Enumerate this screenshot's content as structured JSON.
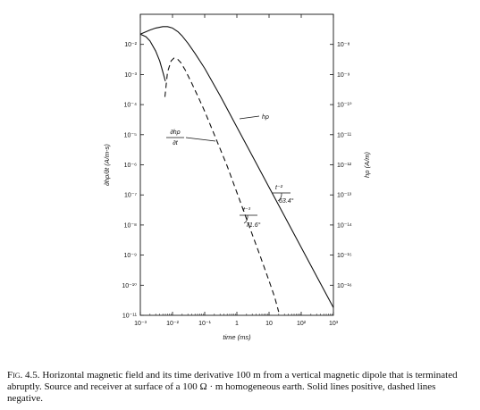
{
  "caption": {
    "label": "Fig. 4.5.",
    "text": "Horizontal magnetic field and its time derivative 100 m from a vertical magnetic dipole that is terminated abruptly. Source and receiver at surface of a 100 Ω · m homogeneous earth. Solid lines positive, dashed lines negative."
  },
  "chart_data": {
    "type": "line",
    "x_scale": "log",
    "y_scale": "log",
    "xlabel": "time (ms)",
    "ylabel_left": "∂hρ/∂t (A/m-s)",
    "ylabel_right": "hρ (A/m)",
    "xlim": [
      0.001,
      1000
    ],
    "ylim_left": [
      1e-11,
      0.1
    ],
    "ylim_right": [
      1e-17,
      1e-07
    ],
    "x_ticks": [
      "10⁻³",
      "10⁻²",
      "10⁻¹",
      "1",
      "10",
      "10²",
      "10³"
    ],
    "y_ticks_left": [
      "10⁻²",
      "10⁻³",
      "10⁻⁴",
      "10⁻⁵",
      "10⁻⁶",
      "10⁻⁷",
      "10⁻⁸",
      "10⁻⁹",
      "10⁻¹⁰",
      "10⁻¹¹"
    ],
    "y_ticks_right": [
      "10⁻⁸",
      "10⁻⁹",
      "10⁻¹⁰",
      "10⁻¹¹",
      "10⁻¹²",
      "10⁻¹³",
      "10⁻¹⁴",
      "10⁻¹⁵",
      "10⁻¹⁶"
    ],
    "series": [
      {
        "name": "hρ",
        "axis": "right",
        "style": "solid",
        "x": [
          0.001,
          0.002,
          0.003,
          0.005,
          0.007,
          0.01,
          0.015,
          0.02,
          0.03,
          0.05,
          0.1,
          0.3,
          1,
          3,
          10,
          30,
          100,
          300,
          1000
        ],
        "y": [
          2.2e-08,
          3e-08,
          3.5e-08,
          3.9e-08,
          3.9e-08,
          3.5e-08,
          2.6e-08,
          1.9e-08,
          1.1e-08,
          5e-09,
          1.6e-09,
          2e-10,
          1.8e-11,
          2e-12,
          1.8e-13,
          2e-14,
          1.8e-15,
          2e-16,
          1.8e-17
        ]
      },
      {
        "name": "∂hρ/∂t",
        "axis": "left",
        "style": "solid",
        "x": [
          0.001,
          0.0015,
          0.002,
          0.003,
          0.004,
          0.005,
          0.006
        ],
        "y": [
          0.022,
          0.018,
          0.013,
          0.006,
          0.0028,
          0.0012,
          0.0006
        ]
      },
      {
        "name": "∂hρ/∂t",
        "axis": "left",
        "style": "dashed",
        "x": [
          0.0058,
          0.007,
          0.009,
          0.011,
          0.014,
          0.018,
          0.025,
          0.04,
          0.07,
          0.1,
          0.2,
          0.5,
          1,
          2,
          5,
          10,
          15,
          20
        ],
        "y": [
          0.00018,
          0.0012,
          0.0028,
          0.0035,
          0.0033,
          0.0025,
          0.0014,
          0.0005,
          0.00014,
          6e-05,
          1e-05,
          9e-07,
          1.2e-07,
          1.6e-08,
          1.1e-09,
          1.4e-10,
          4e-11,
          1.3e-11
        ]
      }
    ],
    "annotations": {
      "h_label": "hρ",
      "dh_label_num": "∂hρ",
      "dh_label_den": "∂t",
      "slope1_power": "t⁻²",
      "slope1_angle": "63.4°",
      "slope2_power": "t⁻³",
      "slope2_angle": "71.6°"
    }
  }
}
